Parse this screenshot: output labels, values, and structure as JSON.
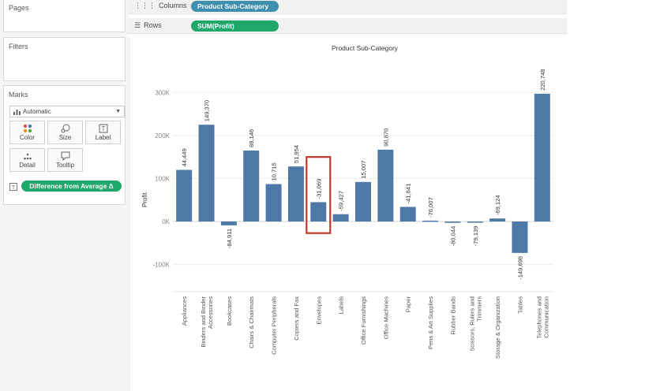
{
  "shelves": {
    "pages_label": "Pages",
    "filters_label": "Filters",
    "columns_label": "Columns",
    "rows_label": "Rows",
    "columns_pill": "Product Sub-Category",
    "rows_pill": "SUM(Profit)"
  },
  "marks": {
    "title": "Marks",
    "mark_type": "Automatic",
    "buttons": {
      "color": "Color",
      "size": "Size",
      "label": "Label",
      "detail": "Detail",
      "tooltip": "Tooltip"
    },
    "label_pill": "Difference from Average Δ"
  },
  "colors": {
    "bar": "#4e79a7",
    "highlight": "#c0392b",
    "pill_blue": "#3f8fae",
    "pill_green": "#20a86b"
  },
  "chart_data": {
    "type": "bar",
    "title": "Product Sub-Category",
    "xlabel": "",
    "ylabel": "Profit",
    "ylim": [
      -150000,
      350000
    ],
    "yticks": [
      -100000,
      0,
      100000,
      200000,
      300000
    ],
    "ytick_labels": [
      "-100K",
      "0K",
      "100K",
      "200K",
      "300K"
    ],
    "categories": [
      [
        "Appliances"
      ],
      [
        "Binders and Binder",
        "Accessories"
      ],
      [
        "Bookcases"
      ],
      [
        "Chairs & Chairmats"
      ],
      [
        "Computer Peripherals"
      ],
      [
        "Copiers and Fax"
      ],
      [
        "Envelopes"
      ],
      [
        "Labels"
      ],
      [
        "Office Furnishings"
      ],
      [
        "Office Machines"
      ],
      [
        "Paper"
      ],
      [
        "Pens & Art Supplies"
      ],
      [
        "Rubber Bands"
      ],
      [
        "Scissors, Rulers and",
        "Trimmers"
      ],
      [
        "Storage & Organization"
      ],
      [
        "Tables"
      ],
      [
        "Telephones and",
        "Communication"
      ]
    ],
    "values": [
      120000,
      225000,
      -9000,
      165000,
      87000,
      128000,
      45000,
      17000,
      92000,
      167000,
      34000,
      2000,
      -3000,
      -2000,
      7000,
      -73000,
      297000
    ],
    "data_labels": [
      "44,449",
      "149,370",
      "-84,911",
      "88,146",
      "10,715",
      "51,954",
      "-31,069",
      "-59,427",
      "15,007",
      "90,870",
      "-41,841",
      "-76,007",
      "-80,044",
      "-79,139",
      "-69,124",
      "-149,698",
      "220,748"
    ],
    "highlighted_index": 6,
    "grid": "horizontal"
  }
}
